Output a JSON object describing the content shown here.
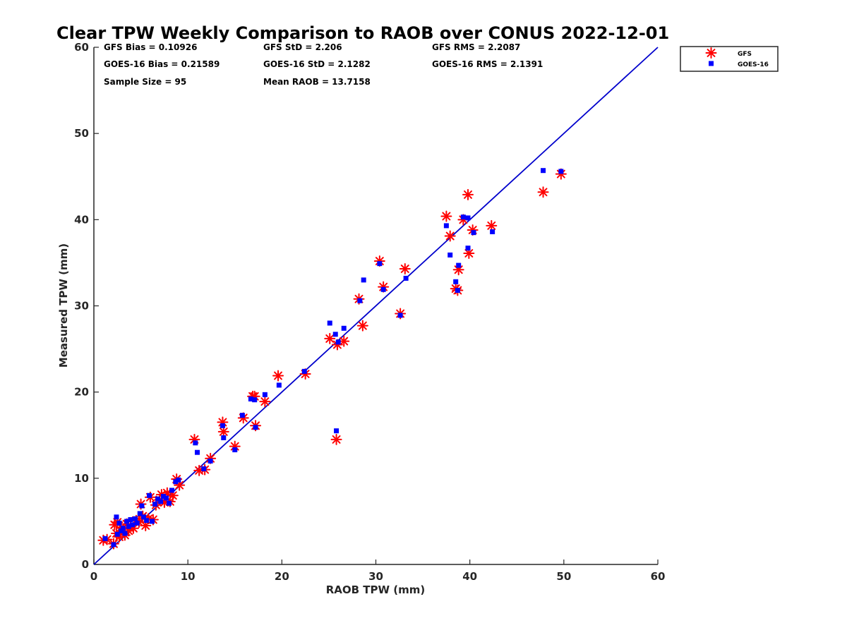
{
  "chart_data": {
    "type": "scatter",
    "title": "Clear TPW Weekly Comparison to RAOB over CONUS 2022-12-01",
    "xlabel": "RAOB TPW (mm)",
    "ylabel": "Measured TPW (mm)",
    "xlim": [
      0,
      60
    ],
    "ylim": [
      0,
      60
    ],
    "xticks": [
      "0",
      "10",
      "20",
      "30",
      "40",
      "50",
      "60"
    ],
    "yticks": [
      "0",
      "10",
      "20",
      "30",
      "40",
      "50",
      "60"
    ],
    "grid": false,
    "legend_position": "top-right",
    "reference_line": {
      "x": [
        0,
        60
      ],
      "y": [
        0,
        60
      ],
      "color": "#0000cc"
    },
    "stats": [
      [
        "GFS Bias = 0.10926",
        "GFS StD = 2.206",
        "GFS RMS = 2.2087"
      ],
      [
        "GOES-16 Bias = 0.21589",
        "GOES-16 StD = 2.1282",
        "GOES-16 RMS = 2.1391"
      ],
      [
        "Sample Size = 95",
        "Mean RAOB = 13.7158"
      ]
    ],
    "series": [
      {
        "name": "GFS",
        "marker": "asterisk",
        "color": "#ff0000",
        "points": [
          [
            1.0,
            2.8
          ],
          [
            1.4,
            2.9
          ],
          [
            2.1,
            2.4
          ],
          [
            2.2,
            4.6
          ],
          [
            2.4,
            3.6
          ],
          [
            2.5,
            4.9
          ],
          [
            2.7,
            3.2
          ],
          [
            2.9,
            4.3
          ],
          [
            3.1,
            3.8
          ],
          [
            3.3,
            3.4
          ],
          [
            3.5,
            4.7
          ],
          [
            3.7,
            3.9
          ],
          [
            3.9,
            4.5
          ],
          [
            4.2,
            4.2
          ],
          [
            4.5,
            5.1
          ],
          [
            4.8,
            4.9
          ],
          [
            5.0,
            7.0
          ],
          [
            5.2,
            5.6
          ],
          [
            5.5,
            4.5
          ],
          [
            5.8,
            5.3
          ],
          [
            6.0,
            7.8
          ],
          [
            6.3,
            5.2
          ],
          [
            6.6,
            6.9
          ],
          [
            7.0,
            7.5
          ],
          [
            7.2,
            8.1
          ],
          [
            7.5,
            7.2
          ],
          [
            7.8,
            8.3
          ],
          [
            8.1,
            7.3
          ],
          [
            8.4,
            8.0
          ],
          [
            8.8,
            9.9
          ],
          [
            9.1,
            9.2
          ],
          [
            10.7,
            14.5
          ],
          [
            11.2,
            10.9
          ],
          [
            11.8,
            11.0
          ],
          [
            12.4,
            12.3
          ],
          [
            13.7,
            16.5
          ],
          [
            13.8,
            15.4
          ],
          [
            15.0,
            13.7
          ],
          [
            15.9,
            17.0
          ],
          [
            16.9,
            19.5
          ],
          [
            17.1,
            19.5
          ],
          [
            17.2,
            16.1
          ],
          [
            18.2,
            18.9
          ],
          [
            19.6,
            21.9
          ],
          [
            22.5,
            22.1
          ],
          [
            25.1,
            26.2
          ],
          [
            25.8,
            14.5
          ],
          [
            25.9,
            25.5
          ],
          [
            26.6,
            25.9
          ],
          [
            28.2,
            30.8
          ],
          [
            28.6,
            27.7
          ],
          [
            30.4,
            35.2
          ],
          [
            30.8,
            32.2
          ],
          [
            32.6,
            29.1
          ],
          [
            33.1,
            34.3
          ],
          [
            37.5,
            40.4
          ],
          [
            37.9,
            38.1
          ],
          [
            38.5,
            32.0
          ],
          [
            38.7,
            31.8
          ],
          [
            38.8,
            34.2
          ],
          [
            39.3,
            40.0
          ],
          [
            39.8,
            42.9
          ],
          [
            39.9,
            36.1
          ],
          [
            40.3,
            38.8
          ],
          [
            42.3,
            39.3
          ],
          [
            47.8,
            43.2
          ],
          [
            49.7,
            45.3
          ]
        ]
      },
      {
        "name": "GOES-16",
        "marker": "square",
        "color": "#0000ff",
        "points": [
          [
            1.2,
            3.0
          ],
          [
            2.1,
            2.3
          ],
          [
            2.4,
            5.5
          ],
          [
            2.5,
            3.5
          ],
          [
            2.7,
            4.8
          ],
          [
            2.9,
            3.9
          ],
          [
            3.1,
            4.2
          ],
          [
            3.3,
            3.6
          ],
          [
            3.5,
            5.0
          ],
          [
            3.7,
            4.4
          ],
          [
            3.9,
            5.2
          ],
          [
            4.1,
            4.6
          ],
          [
            4.4,
            5.3
          ],
          [
            4.6,
            4.8
          ],
          [
            4.9,
            5.9
          ],
          [
            5.1,
            6.8
          ],
          [
            5.3,
            5.5
          ],
          [
            5.6,
            5.1
          ],
          [
            5.9,
            8.0
          ],
          [
            6.2,
            5.0
          ],
          [
            6.5,
            7.0
          ],
          [
            6.8,
            7.6
          ],
          [
            7.1,
            7.3
          ],
          [
            7.4,
            7.9
          ],
          [
            7.7,
            7.7
          ],
          [
            8.0,
            7.1
          ],
          [
            8.3,
            8.6
          ],
          [
            8.7,
            9.6
          ],
          [
            9.0,
            9.8
          ],
          [
            10.8,
            14.1
          ],
          [
            11.0,
            13.0
          ],
          [
            11.7,
            11.1
          ],
          [
            12.4,
            12.0
          ],
          [
            13.7,
            16.1
          ],
          [
            13.8,
            14.7
          ],
          [
            15.0,
            13.3
          ],
          [
            15.8,
            17.3
          ],
          [
            16.7,
            19.2
          ],
          [
            17.1,
            19.1
          ],
          [
            17.2,
            15.9
          ],
          [
            18.2,
            19.7
          ],
          [
            19.7,
            20.8
          ],
          [
            22.4,
            22.4
          ],
          [
            25.1,
            28.0
          ],
          [
            25.7,
            26.7
          ],
          [
            25.8,
            15.5
          ],
          [
            26.0,
            25.8
          ],
          [
            26.6,
            27.4
          ],
          [
            28.3,
            30.6
          ],
          [
            28.7,
            33.0
          ],
          [
            30.4,
            34.9
          ],
          [
            30.8,
            31.9
          ],
          [
            32.6,
            28.9
          ],
          [
            33.2,
            33.2
          ],
          [
            37.5,
            39.3
          ],
          [
            37.9,
            35.9
          ],
          [
            38.5,
            32.8
          ],
          [
            38.7,
            31.8
          ],
          [
            38.8,
            34.7
          ],
          [
            39.3,
            40.3
          ],
          [
            39.8,
            40.2
          ],
          [
            39.8,
            36.7
          ],
          [
            40.4,
            38.5
          ],
          [
            42.4,
            38.6
          ],
          [
            47.8,
            45.7
          ],
          [
            49.7,
            45.6
          ]
        ]
      }
    ]
  }
}
